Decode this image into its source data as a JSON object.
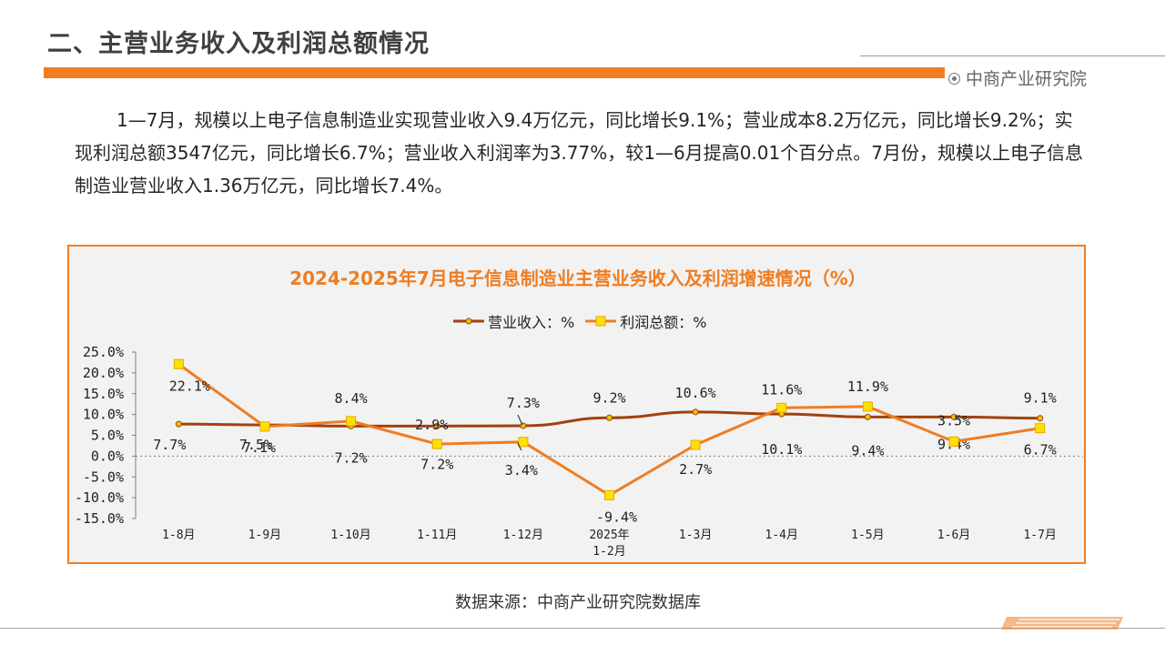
{
  "page": {
    "title": "二、主营业务收入及利润总额情况",
    "brand": "中商产业研究院",
    "paragraph": "1—7月，规模以上电子信息制造业实现营业收入9.4万亿元，同比增长9.1%；营业成本8.2万亿元，同比增长9.2%；实现利润总额3547亿元，同比增长6.7%；营业收入利润率为3.77%，较1—6月提高0.01个百分点。7月份，规模以上电子信息制造业营业收入1.36万亿元，同比增长7.4%。",
    "source": "数据来源：中商产业研究院数据库"
  },
  "colors": {
    "accent": "#ef7d22",
    "revenue_line": "#a0420f",
    "revenue_marker": "#f5c400",
    "profit_line": "#ef7d22",
    "profit_marker": "#ffe100"
  },
  "chart_data": {
    "type": "line",
    "title": "2024-2025年7月电子信息制造业主营业务收入及利润增速情况（%）",
    "categories": [
      "1-8月",
      "1-9月",
      "1-10月",
      "1-11月",
      "1-12月",
      "2025年\n1-2月",
      "1-3月",
      "1-4月",
      "1-5月",
      "1-6月",
      "1-7月"
    ],
    "series": [
      {
        "name": "营业收入：%",
        "values": [
          7.7,
          7.5,
          7.2,
          7.2,
          7.3,
          9.2,
          10.6,
          10.1,
          9.4,
          9.4,
          9.1
        ],
        "labels": [
          "7.7%",
          "7.5%",
          "7.2%",
          "7.2%",
          "7.3%",
          "9.2%",
          "10.6%",
          "10.1%",
          "9.4%",
          "9.4%",
          "9.1%"
        ]
      },
      {
        "name": "利润总额：%",
        "values": [
          22.1,
          7.1,
          8.4,
          2.9,
          3.4,
          -9.4,
          2.7,
          11.6,
          11.9,
          3.5,
          6.7
        ],
        "labels": [
          "22.1%",
          "7.1%",
          "8.4%",
          "2.9%",
          "3.4%",
          "-9.4%",
          "2.7%",
          "11.6%",
          "11.9%",
          "3.5%",
          "6.7%"
        ]
      }
    ],
    "yticks": [
      "25.0%",
      "20.0%",
      "15.0%",
      "10.0%",
      "5.0%",
      "0.0%",
      "-5.0%",
      "-10.0%",
      "-15.0%"
    ],
    "ylim": [
      -15,
      25
    ],
    "legend_position": "top-center",
    "grid": false
  }
}
